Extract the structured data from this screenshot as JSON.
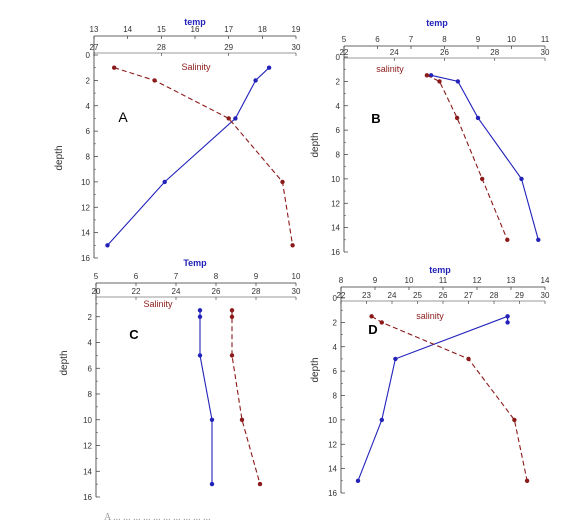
{
  "caption": "A ... ... ... ... ... ... ... ... ... ...",
  "colors": {
    "temp": "#2222bb",
    "salinity": "#8b1a1a",
    "axis": "#333333"
  },
  "chart_data": [
    {
      "id": "A",
      "type": "line",
      "panel_label": "A",
      "top_axis_label": "temp",
      "salinity_label": "Salinity",
      "ylabel": "depth",
      "temp_axis": {
        "min": 13,
        "max": 19,
        "ticks": [
          "13",
          "14",
          "15",
          "16",
          "17",
          "18",
          "19"
        ]
      },
      "salinity_axis": {
        "min": 27,
        "max": 30,
        "ticks": [
          "27",
          "28",
          "29",
          "30"
        ]
      },
      "depth_axis": {
        "min": 0,
        "max": 16,
        "ticks": [
          "0",
          "2",
          "4",
          "6",
          "8",
          "10",
          "12",
          "14",
          "16"
        ]
      },
      "series": [
        {
          "name": "temp",
          "style": "solid",
          "points": [
            [
              18.2,
              1
            ],
            [
              17.8,
              2
            ],
            [
              17.2,
              5
            ],
            [
              15.1,
              10
            ],
            [
              13.4,
              15
            ]
          ]
        },
        {
          "name": "Salinity",
          "style": "dashed",
          "points": [
            [
              27.3,
              1
            ],
            [
              27.9,
              2
            ],
            [
              29.0,
              5
            ],
            [
              29.8,
              10
            ],
            [
              29.95,
              15
            ]
          ]
        }
      ]
    },
    {
      "id": "B",
      "type": "line",
      "panel_label": "B",
      "top_axis_label": "temp",
      "salinity_label": "salinity",
      "ylabel": "depth",
      "temp_axis": {
        "min": 5,
        "max": 11,
        "ticks": [
          "5",
          "6",
          "7",
          "8",
          "9",
          "10",
          "11"
        ]
      },
      "salinity_axis": {
        "min": 22,
        "max": 30,
        "ticks": [
          "22",
          "24",
          "26",
          "28",
          "30"
        ]
      },
      "depth_axis": {
        "min": 0,
        "max": 16,
        "ticks": [
          "0",
          "2",
          "4",
          "6",
          "8",
          "10",
          "12",
          "14",
          "16"
        ]
      },
      "series": [
        {
          "name": "temp",
          "style": "solid",
          "points": [
            [
              7.6,
              1.5
            ],
            [
              8.4,
              2
            ],
            [
              9.0,
              5
            ],
            [
              10.3,
              10
            ],
            [
              10.8,
              15
            ]
          ]
        },
        {
          "name": "salinity",
          "style": "dashed",
          "points": [
            [
              25.3,
              1.5
            ],
            [
              25.8,
              2
            ],
            [
              26.5,
              5
            ],
            [
              27.5,
              10
            ],
            [
              28.5,
              15
            ]
          ]
        }
      ]
    },
    {
      "id": "C",
      "type": "line",
      "panel_label": "C",
      "top_axis_label": "Temp",
      "salinity_label": "Salinity",
      "ylabel": "depth",
      "temp_axis": {
        "min": 5,
        "max": 10,
        "ticks": [
          "5",
          "6",
          "7",
          "8",
          "9",
          "10"
        ]
      },
      "salinity_axis": {
        "min": 20,
        "max": 30,
        "ticks": [
          "20",
          "22",
          "24",
          "26",
          "28",
          "30"
        ]
      },
      "depth_axis": {
        "min": 0,
        "max": 16,
        "ticks": [
          "2",
          "4",
          "6",
          "8",
          "10",
          "12",
          "14",
          "16"
        ]
      },
      "series": [
        {
          "name": "Temp",
          "style": "solid",
          "points": [
            [
              7.6,
              1.5
            ],
            [
              7.6,
              2
            ],
            [
              7.6,
              5
            ],
            [
              7.9,
              10
            ],
            [
              7.9,
              15
            ]
          ]
        },
        {
          "name": "Salinity",
          "style": "dashed",
          "points": [
            [
              26.8,
              1.5
            ],
            [
              26.8,
              2
            ],
            [
              26.8,
              5
            ],
            [
              27.3,
              10
            ],
            [
              28.2,
              15
            ]
          ]
        }
      ]
    },
    {
      "id": "D",
      "type": "line",
      "panel_label": "D",
      "top_axis_label": "temp",
      "salinity_label": "salinity",
      "ylabel": "depth",
      "temp_axis": {
        "min": 8,
        "max": 14,
        "ticks": [
          "8",
          "9",
          "10",
          "11",
          "12",
          "13",
          "14"
        ]
      },
      "salinity_axis": {
        "min": 22,
        "max": 30,
        "ticks": [
          "22",
          "23",
          "24",
          "25",
          "26",
          "27",
          "28",
          "29",
          "30"
        ]
      },
      "depth_axis": {
        "min": 0,
        "max": 16,
        "ticks": [
          "0",
          "2",
          "4",
          "6",
          "8",
          "10",
          "12",
          "14",
          "16"
        ]
      },
      "series": [
        {
          "name": "temp",
          "style": "solid",
          "points": [
            [
              12.9,
              2
            ],
            [
              12.9,
              1.5
            ],
            [
              9.6,
              5
            ],
            [
              9.2,
              10
            ],
            [
              8.5,
              15
            ]
          ]
        },
        {
          "name": "salinity",
          "style": "dashed",
          "points": [
            [
              23.2,
              1.5
            ],
            [
              23.6,
              2
            ],
            [
              27.0,
              5
            ],
            [
              28.8,
              10
            ],
            [
              29.3,
              15
            ]
          ]
        }
      ]
    }
  ]
}
